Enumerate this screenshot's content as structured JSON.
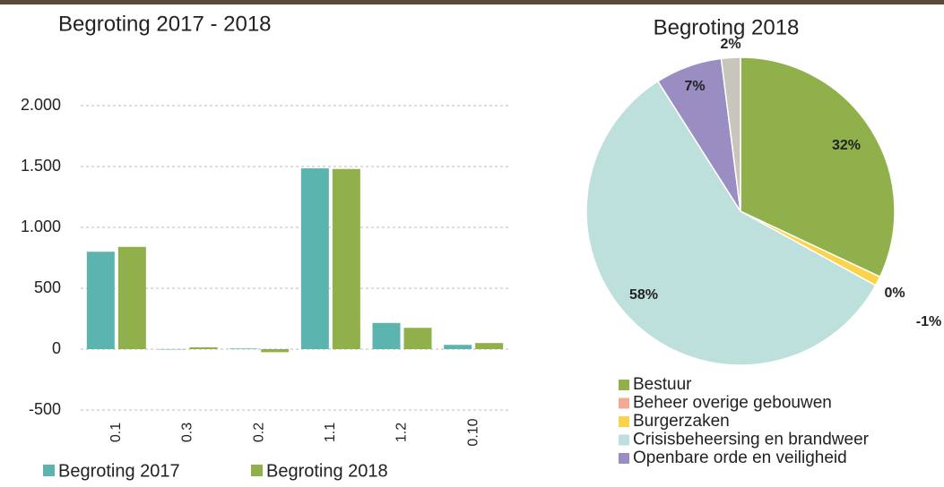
{
  "chart_data": [
    {
      "type": "bar",
      "title": "Begroting 2017 - 2018",
      "categories": [
        "0.1",
        "0.3",
        "0.2",
        "1.1",
        "1.2",
        "0.10"
      ],
      "series": [
        {
          "name": "Begroting 2017",
          "color": "#5bb5ae",
          "values": [
            800,
            0,
            5,
            1485,
            215,
            35
          ]
        },
        {
          "name": "Begroting 2018",
          "color": "#8fb04b",
          "values": [
            840,
            15,
            -25,
            1480,
            175,
            50
          ]
        }
      ],
      "ylim": [
        -500,
        2000
      ],
      "yticks": [
        -500,
        0,
        500,
        {
          "value": 1000,
          "label": "1.000"
        },
        {
          "value": 1500,
          "label": "1.500"
        },
        {
          "value": 2000,
          "label": "2.000"
        }
      ],
      "grid": true,
      "legend": "bottom"
    },
    {
      "type": "pie",
      "title": "Begroting 2018",
      "categories": [
        "Bestuur",
        "Beheer overige gebouwen",
        "Burgerzaken",
        "Crisisbeheersing en brandweer",
        "Openbare orde en veiligheid",
        null
      ],
      "values": [
        32,
        0,
        -1,
        58,
        7,
        2
      ],
      "value_labels": [
        "32%",
        "0%",
        "-1%",
        "58%",
        "7%",
        "2%"
      ],
      "colors": [
        "#8fb04b",
        "#f4a996",
        "#fcd44c",
        "#bde0dc",
        "#9a8dc2",
        "#c8c5bc"
      ],
      "legend": "bottom"
    }
  ]
}
